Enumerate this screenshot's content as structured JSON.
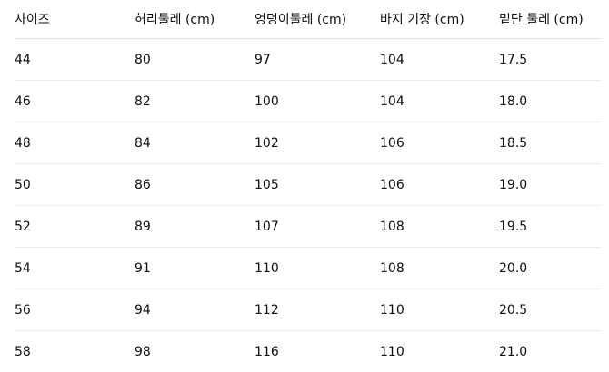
{
  "headers": [
    "사이즈",
    "허리둘레 (cm)",
    "엉덩이둘레 (cm)",
    "바지 기장 (cm)",
    "밑단 둘레 (cm)"
  ],
  "rows": [
    [
      "44",
      "80",
      "97",
      "104",
      "17.5"
    ],
    [
      "46",
      "82",
      "100",
      "104",
      "18.0"
    ],
    [
      "48",
      "84",
      "102",
      "106",
      "18.5"
    ],
    [
      "50",
      "86",
      "105",
      "106",
      "19.0"
    ],
    [
      "52",
      "89",
      "107",
      "108",
      "19.5"
    ],
    [
      "54",
      "91",
      "110",
      "108",
      "20.0"
    ],
    [
      "56",
      "94",
      "112",
      "110",
      "20.5"
    ],
    [
      "58",
      "98",
      "116",
      "110",
      "21.0"
    ]
  ]
}
